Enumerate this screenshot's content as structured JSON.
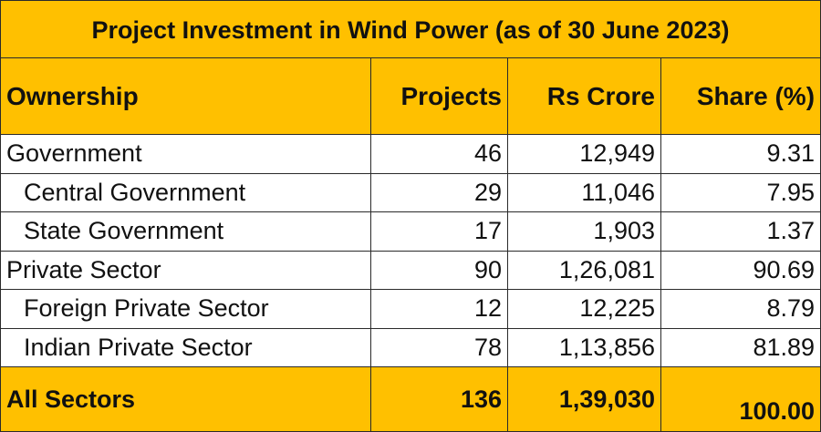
{
  "title": "Project Investment in Wind Power (as of 30 June 2023)",
  "columns": [
    "Ownership",
    "Projects",
    "Rs Crore",
    "Share (%)"
  ],
  "rows": [
    {
      "ownership": "Government",
      "projects": "46",
      "rs_crore": "12,949",
      "share": "9.31",
      "indent": false
    },
    {
      "ownership": "Central Government",
      "projects": "29",
      "rs_crore": "11,046",
      "share": "7.95",
      "indent": true
    },
    {
      "ownership": "State Government",
      "projects": "17",
      "rs_crore": "1,903",
      "share": "1.37",
      "indent": true
    },
    {
      "ownership": "Private Sector",
      "projects": "90",
      "rs_crore": "1,26,081",
      "share": "90.69",
      "indent": false
    },
    {
      "ownership": "Foreign Private Sector",
      "projects": "12",
      "rs_crore": "12,225",
      "share": "8.79",
      "indent": true
    },
    {
      "ownership": "Indian Private Sector",
      "projects": "78",
      "rs_crore": "1,13,856",
      "share": "81.89",
      "indent": true
    }
  ],
  "total": {
    "ownership": "All Sectors",
    "projects": "136",
    "rs_crore": "1,39,030",
    "share": "100.00"
  },
  "colors": {
    "header_fill": "#FFC000",
    "body_fill": "#FFFFFF",
    "border": "#2A2A2A"
  }
}
